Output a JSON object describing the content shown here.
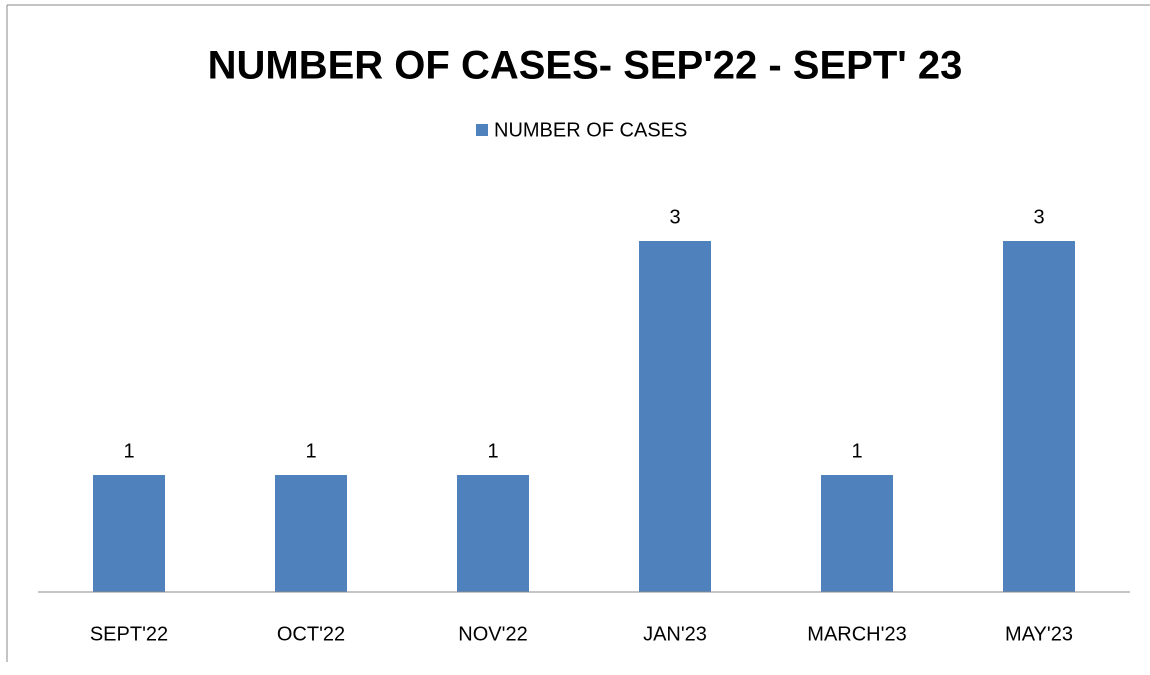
{
  "chart_data": {
    "type": "bar",
    "title": "NUMBER OF CASES- SEP'22 - SEPT' 23",
    "categories": [
      "SEPT'22",
      "OCT'22",
      "NOV'22",
      "JAN'23",
      "MARCH'23",
      "MAY'23"
    ],
    "series": [
      {
        "name": "NUMBER OF CASES",
        "color": "#4f81bd",
        "values": [
          1,
          1,
          1,
          3,
          1,
          3
        ]
      }
    ],
    "ylim": [
      0,
      3.5
    ],
    "legend": "top",
    "data_labels": true
  }
}
